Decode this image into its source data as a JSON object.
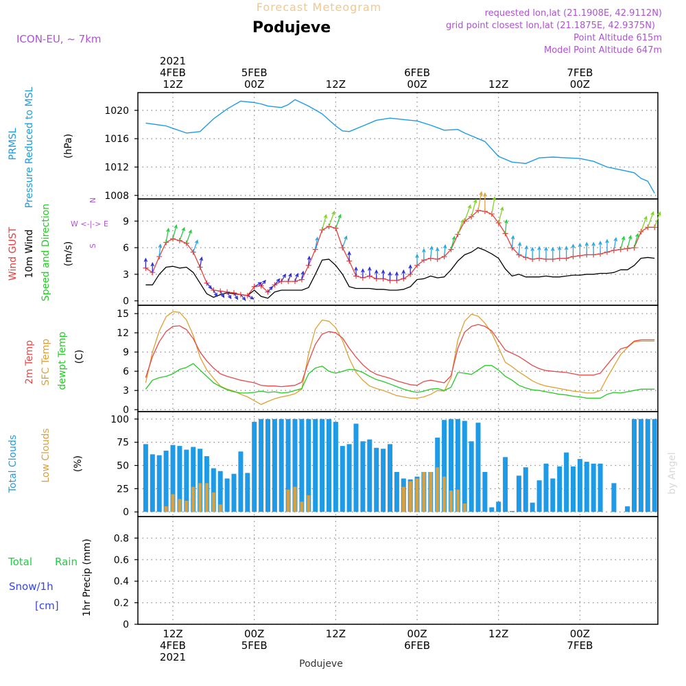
{
  "header": {
    "title_top": "Forecast Meteogram",
    "station": "Podujeve",
    "model": "ICON-EU, ~ 7km",
    "info_lines": [
      "requested lon,lat (21.1908E, 42.9112N)",
      "grid point closest lon,lat (21.1875E, 42.9375N)",
      "Point Altitude 615m",
      "Model Point Altitude 647m"
    ],
    "watermark": "by Angel",
    "footer_station": "Podujeve"
  },
  "time_axis": {
    "top_labels": [
      {
        "t": 0,
        "lines": [
          "2021",
          "4FEB",
          "12Z"
        ]
      },
      {
        "t": 12,
        "lines": [
          "5FEB",
          "00Z"
        ]
      },
      {
        "t": 24,
        "lines": [
          "12Z"
        ]
      },
      {
        "t": 36,
        "lines": [
          "6FEB",
          "00Z"
        ]
      },
      {
        "t": 48,
        "lines": [
          "12Z"
        ]
      },
      {
        "t": 60,
        "lines": [
          "7FEB",
          "00Z"
        ]
      }
    ],
    "bottom_labels": [
      {
        "t": 0,
        "lines": [
          "12Z",
          "4FEB",
          "2021"
        ]
      },
      {
        "t": 12,
        "lines": [
          "00Z",
          "5FEB"
        ]
      },
      {
        "t": 24,
        "lines": [
          "12Z"
        ]
      },
      {
        "t": 36,
        "lines": [
          "00Z",
          "6FEB"
        ]
      },
      {
        "t": 48,
        "lines": [
          "12Z"
        ]
      },
      {
        "t": 60,
        "lines": [
          "00Z",
          "7FEB"
        ]
      }
    ]
  },
  "panel_labels": {
    "pressure": {
      "lines": [
        "PRMSL",
        "Pressure Reduced to MSL"
      ],
      "unit": "(hPa)"
    },
    "wind": {
      "gust": "Wind GUST",
      "wind10m": "10m Wind",
      "dir": "Speed and Direction",
      "unit": "(m/s)",
      "compass": [
        "N",
        "W <-|-> E",
        "S"
      ]
    },
    "temp": {
      "t2m": "2m Temp",
      "sfc": "SFC Temp",
      "dew": "dewpt Temp",
      "unit": "(C)"
    },
    "clouds": {
      "total": "Total Clouds",
      "low": "Low Clouds",
      "unit": "(%)"
    },
    "precip": {
      "total": "Total",
      "rain": "Rain",
      "snow": "Snow/1h",
      "snow_unit": "[cm]",
      "axis": "1hr Precip (mm)"
    }
  },
  "colors": {
    "pressure": "#1a9be6",
    "gust": "#e83c3c",
    "wind": "#000000",
    "t2m": "#e84848",
    "sfc": "#e0a030",
    "dew": "#22cc22",
    "total_cloud": "#1e9ae6",
    "low_cloud": "#d9a040",
    "rain": "#22cc44",
    "snow": "#3344ee",
    "purple": "#b050d8",
    "title_orange": "#f0c890",
    "grid": "#909090"
  },
  "chart_data": [
    {
      "type": "line",
      "title": "PRMSL Pressure Reduced to MSL",
      "ylabel": "(hPa)",
      "ylim": [
        1007.5,
        1022.5
      ],
      "yticks": [
        1008,
        1012,
        1016,
        1020
      ],
      "x_hours_from_4FEB12Z": [
        -4,
        -1,
        2,
        4,
        6,
        8,
        10,
        12,
        13,
        14,
        15,
        16,
        17,
        18,
        20,
        22,
        24,
        25,
        26,
        28,
        30,
        32,
        34,
        36,
        38,
        40,
        42,
        43,
        44,
        46,
        48,
        50,
        52,
        54,
        56,
        58,
        60,
        62,
        64,
        66,
        68,
        69,
        70,
        71
      ],
      "series": [
        {
          "name": "PRMSL",
          "values": [
            1018.2,
            1017.8,
            1016.8,
            1017.0,
            1018.8,
            1020.2,
            1021.3,
            1021.1,
            1020.9,
            1020.6,
            1020.5,
            1020.4,
            1020.8,
            1021.5,
            1020.6,
            1019.5,
            1017.8,
            1017.1,
            1017.0,
            1017.8,
            1018.6,
            1018.9,
            1018.7,
            1018.5,
            1017.9,
            1017.2,
            1017.3,
            1016.8,
            1016.4,
            1015.6,
            1013.5,
            1012.7,
            1012.5,
            1013.3,
            1013.4,
            1013.3,
            1013.2,
            1012.8,
            1012.0,
            1011.6,
            1011.2,
            1010.4,
            1010.0,
            1008.3
          ]
        }
      ]
    },
    {
      "type": "line",
      "title": "Wind GUST / 10m Wind Speed and Direction",
      "ylabel": "(m/s)",
      "ylim": [
        -0.5,
        11.5
      ],
      "yticks": [
        0,
        3,
        6,
        9
      ],
      "x_hours_from_4FEB12Z": [
        -4,
        -3,
        -2,
        -1,
        0,
        1,
        2,
        3,
        4,
        5,
        6,
        7,
        8,
        9,
        10,
        11,
        12,
        13,
        14,
        15,
        16,
        17,
        18,
        19,
        20,
        21,
        22,
        23,
        24,
        25,
        26,
        27,
        28,
        29,
        30,
        31,
        32,
        33,
        34,
        35,
        36,
        37,
        38,
        39,
        40,
        41,
        42,
        43,
        44,
        45,
        46,
        47,
        48,
        49,
        50,
        51,
        52,
        53,
        54,
        55,
        56,
        57,
        58,
        59,
        60,
        61,
        62,
        63,
        64,
        65,
        66,
        67,
        68,
        69,
        70,
        71
      ],
      "series": [
        {
          "name": "Wind GUST",
          "values": [
            3.7,
            3.2,
            5.0,
            6.6,
            7.0,
            6.8,
            6.5,
            5.5,
            3.8,
            2.0,
            1.2,
            1.1,
            1.0,
            0.9,
            0.7,
            0.6,
            1.6,
            1.7,
            1.0,
            1.8,
            2.2,
            2.2,
            2.2,
            2.4,
            4.0,
            5.8,
            8.0,
            8.4,
            8.2,
            6.0,
            4.5,
            2.8,
            2.6,
            2.8,
            2.5,
            2.5,
            2.3,
            2.3,
            2.5,
            3.0,
            4.0,
            4.6,
            4.8,
            4.7,
            5.0,
            5.8,
            7.5,
            9.0,
            9.5,
            10.2,
            10.1,
            9.8,
            8.8,
            7.6,
            6.0,
            5.2,
            4.9,
            4.7,
            4.8,
            4.7,
            4.7,
            4.8,
            4.8,
            5.0,
            5.1,
            5.2,
            5.2,
            5.3,
            5.5,
            5.7,
            5.8,
            5.9,
            6.0,
            7.8,
            8.3,
            8.3
          ]
        },
        {
          "name": "10m Wind",
          "values": [
            1.8,
            1.8,
            3.0,
            3.8,
            3.9,
            3.7,
            3.8,
            3.2,
            2.0,
            0.8,
            0.4,
            0.7,
            0.9,
            0.8,
            0.7,
            0.6,
            1.2,
            0.5,
            0.3,
            1.0,
            1.2,
            1.2,
            1.2,
            1.2,
            1.5,
            3.0,
            4.6,
            4.7,
            4.0,
            3.0,
            1.6,
            1.4,
            1.4,
            1.4,
            1.3,
            1.3,
            1.2,
            1.2,
            1.3,
            1.6,
            2.4,
            2.5,
            2.8,
            2.6,
            2.7,
            3.5,
            4.5,
            5.2,
            5.5,
            6.0,
            5.7,
            5.3,
            4.8,
            3.6,
            2.8,
            3.0,
            2.7,
            2.7,
            2.7,
            2.8,
            2.7,
            2.7,
            2.8,
            2.9,
            2.9,
            3.0,
            3.0,
            3.1,
            3.1,
            3.2,
            3.5,
            3.5,
            4.0,
            4.8,
            4.9,
            4.8
          ]
        }
      ]
    },
    {
      "type": "line",
      "title": "2m Temp / SFC Temp / dewpt Temp",
      "ylabel": "(C)",
      "ylim": [
        -0.3,
        16.3
      ],
      "yticks": [
        0,
        3,
        6,
        9,
        12,
        15
      ],
      "x_hours_from_4FEB12Z": [
        -4,
        -3,
        -2,
        -1,
        0,
        1,
        2,
        3,
        4,
        5,
        6,
        7,
        8,
        9,
        10,
        11,
        12,
        13,
        14,
        15,
        16,
        17,
        18,
        19,
        20,
        21,
        22,
        23,
        24,
        25,
        26,
        27,
        28,
        29,
        30,
        31,
        32,
        33,
        34,
        35,
        36,
        37,
        38,
        39,
        40,
        41,
        42,
        43,
        44,
        45,
        46,
        47,
        48,
        49,
        50,
        51,
        52,
        53,
        54,
        55,
        56,
        57,
        58,
        59,
        60,
        61,
        62,
        63,
        64,
        65,
        66,
        67,
        68,
        69,
        70,
        71
      ],
      "series": [
        {
          "name": "2m Temp",
          "values": [
            5.0,
            8.3,
            10.6,
            12.2,
            13.0,
            13.1,
            12.5,
            11.1,
            9.0,
            7.6,
            6.5,
            5.6,
            5.2,
            4.9,
            4.6,
            4.4,
            4.2,
            3.8,
            3.7,
            3.7,
            3.6,
            3.7,
            3.8,
            4.3,
            7.5,
            10.2,
            11.8,
            12.2,
            12.0,
            11.2,
            9.6,
            8.2,
            7.0,
            6.1,
            5.5,
            5.2,
            4.9,
            4.5,
            4.2,
            3.9,
            3.8,
            4.4,
            4.6,
            4.4,
            4.2,
            5.3,
            9.6,
            12.1,
            13.0,
            13.3,
            13.0,
            12.3,
            10.8,
            9.3,
            8.8,
            8.3,
            7.6,
            6.9,
            6.4,
            6.1,
            6.0,
            5.9,
            5.8,
            5.6,
            5.4,
            5.4,
            5.4,
            5.7,
            7.0,
            8.3,
            9.5,
            9.8,
            10.7,
            10.9,
            10.9,
            10.9
          ]
        },
        {
          "name": "SFC Temp",
          "values": [
            4.2,
            9.0,
            12.3,
            14.5,
            15.3,
            15.2,
            14.0,
            11.6,
            8.2,
            6.2,
            4.9,
            3.7,
            3.2,
            2.9,
            2.4,
            2.0,
            1.4,
            0.8,
            1.3,
            1.7,
            2.0,
            2.2,
            2.5,
            3.2,
            8.7,
            12.6,
            14.0,
            13.8,
            12.8,
            10.8,
            8.0,
            5.8,
            4.6,
            3.7,
            3.3,
            3.0,
            2.6,
            2.2,
            2.0,
            1.8,
            1.8,
            2.0,
            2.4,
            3.0,
            2.9,
            5.0,
            10.9,
            13.8,
            14.9,
            14.6,
            13.5,
            12.0,
            9.7,
            7.4,
            6.7,
            5.9,
            5.2,
            4.5,
            4.0,
            3.7,
            3.5,
            3.3,
            3.1,
            2.9,
            2.8,
            2.6,
            2.6,
            3.0,
            5.0,
            6.8,
            8.6,
            9.7,
            10.6,
            10.7,
            10.7,
            10.7
          ]
        },
        {
          "name": "dewpt Temp",
          "values": [
            3.2,
            4.6,
            5.0,
            5.2,
            5.6,
            6.3,
            6.6,
            7.2,
            6.2,
            5.2,
            4.2,
            3.6,
            3.1,
            2.8,
            2.6,
            2.6,
            2.7,
            2.9,
            2.7,
            2.8,
            2.6,
            2.7,
            3.0,
            3.3,
            5.6,
            6.5,
            6.8,
            6.0,
            5.7,
            6.0,
            6.3,
            6.2,
            5.8,
            5.2,
            4.7,
            4.4,
            4.0,
            3.6,
            3.2,
            2.9,
            2.7,
            2.9,
            3.2,
            3.3,
            3.0,
            3.5,
            5.8,
            5.7,
            5.5,
            6.2,
            6.9,
            6.9,
            6.2,
            5.2,
            4.6,
            3.8,
            3.4,
            3.1,
            3.0,
            2.8,
            2.6,
            2.4,
            2.3,
            2.1,
            2.0,
            1.8,
            1.8,
            1.8,
            2.4,
            2.7,
            2.6,
            2.8,
            3.0,
            3.2,
            3.2,
            3.2
          ]
        }
      ]
    },
    {
      "type": "bar",
      "title": "Total Clouds / Low Clouds",
      "ylabel": "(%)",
      "ylim": [
        -5,
        108
      ],
      "yticks": [
        0,
        25,
        50,
        75,
        100
      ],
      "x_hours_from_4FEB12Z": [
        -4,
        -3,
        -2,
        -1,
        0,
        1,
        2,
        3,
        4,
        5,
        6,
        7,
        8,
        9,
        10,
        11,
        12,
        13,
        14,
        15,
        16,
        17,
        18,
        19,
        20,
        21,
        22,
        23,
        24,
        25,
        26,
        27,
        28,
        29,
        30,
        31,
        32,
        33,
        34,
        35,
        36,
        37,
        38,
        39,
        40,
        41,
        42,
        43,
        44,
        45,
        46,
        47,
        48,
        49,
        50,
        51,
        52,
        53,
        54,
        55,
        56,
        57,
        58,
        59,
        60,
        61,
        62,
        63,
        64,
        65,
        66,
        67,
        68,
        69,
        70,
        71
      ],
      "series": [
        {
          "name": "Total Clouds",
          "values": [
            73,
            62,
            61,
            66,
            72,
            71,
            67,
            70,
            68,
            60,
            47,
            44,
            36,
            41,
            65,
            42,
            97,
            100,
            100,
            100,
            100,
            100,
            100,
            100,
            100,
            100,
            100,
            100,
            97,
            71,
            73,
            95,
            76,
            78,
            69,
            68,
            73,
            43,
            36,
            35,
            38,
            43,
            43,
            80,
            99,
            100,
            100,
            98,
            76,
            96,
            43,
            5,
            11,
            59,
            1,
            39,
            48,
            10,
            34,
            52,
            36,
            49,
            64,
            49,
            57,
            54,
            52,
            52,
            0,
            31,
            0,
            6,
            100,
            100,
            100,
            100
          ]
        },
        {
          "name": "Low Clouds",
          "values": [
            0,
            0,
            0,
            6,
            19,
            14,
            12,
            27,
            31,
            31,
            21,
            8,
            0,
            0,
            0,
            0,
            0,
            0,
            0,
            0,
            0,
            24,
            27,
            11,
            18,
            0,
            0,
            0,
            0,
            0,
            0,
            0,
            0,
            0,
            0,
            0,
            0,
            0,
            27,
            33,
            36,
            43,
            43,
            48,
            38,
            23,
            24,
            9,
            0,
            0,
            0,
            0,
            0,
            0,
            0,
            0,
            0,
            0,
            0,
            0,
            0,
            0,
            0,
            0,
            0,
            0,
            0,
            0,
            0,
            0,
            0,
            0,
            0,
            0,
            0,
            0
          ]
        }
      ]
    },
    {
      "type": "bar",
      "title": "Total Rain / Snow",
      "ylabel": "1hr Precip (mm)",
      "ylim": [
        0,
        1.0
      ],
      "yticks": [
        0,
        0.2,
        0.4,
        0.6,
        0.8
      ],
      "series": [
        {
          "name": "Total Rain",
          "values": []
        },
        {
          "name": "Snow/1h",
          "values": []
        }
      ]
    }
  ],
  "wind_direction": {
    "to_direction_deg_by_hour": [
      0,
      0,
      5,
      10,
      15,
      20,
      20,
      20,
      10,
      140,
      150,
      150,
      150,
      150,
      140,
      120,
      60,
      40,
      40,
      40,
      30,
      20,
      20,
      10,
      5,
      10,
      15,
      20,
      20,
      20,
      0,
      0,
      0,
      0,
      0,
      0,
      0,
      0,
      0,
      0,
      0,
      0,
      5,
      0,
      5,
      15,
      20,
      20,
      15,
      10,
      0,
      10,
      15,
      5,
      5,
      5,
      5,
      0,
      0,
      0,
      0,
      0,
      0,
      0,
      0,
      0,
      0,
      0,
      0,
      10,
      15,
      15,
      15,
      20,
      20,
      20
    ]
  }
}
